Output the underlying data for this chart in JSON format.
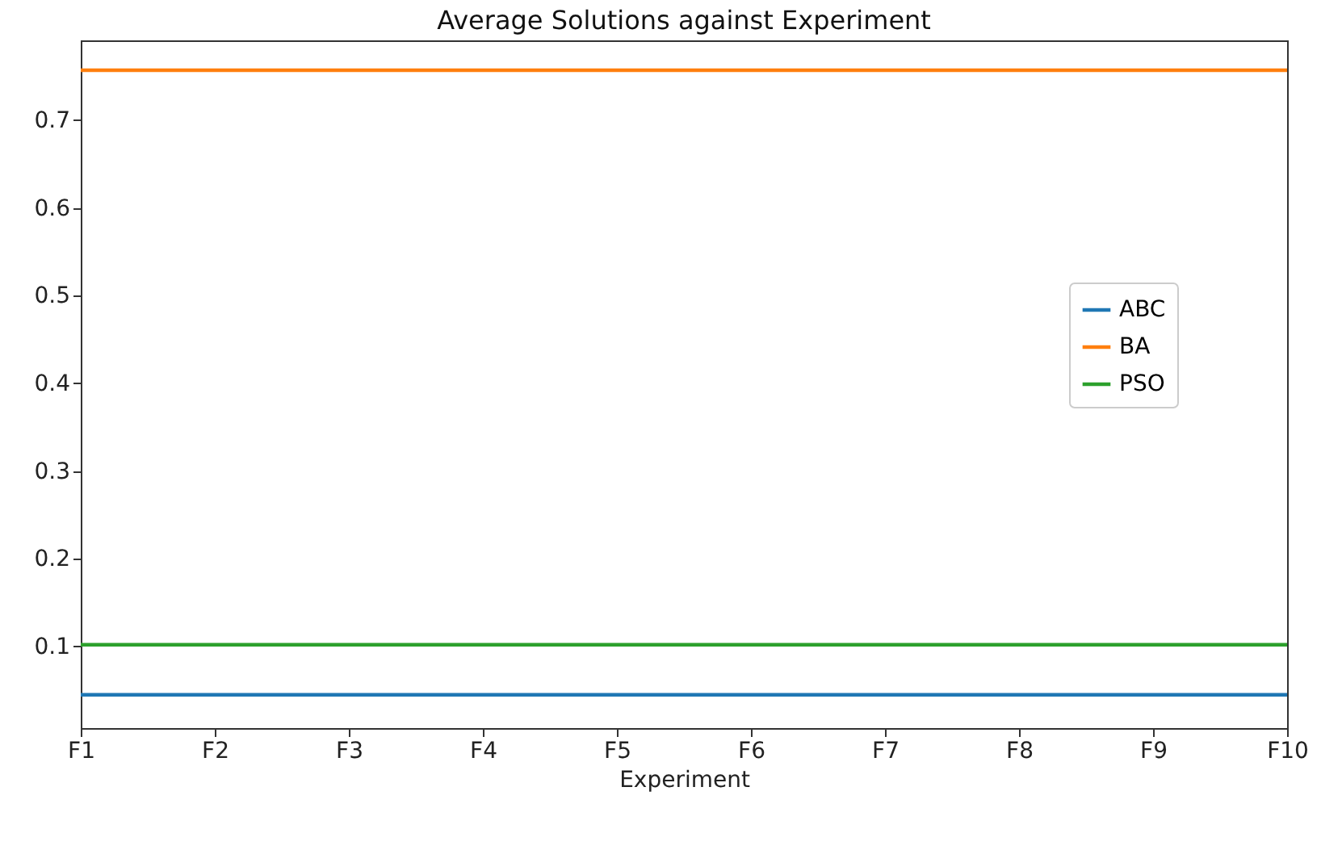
{
  "chart_data": {
    "type": "line",
    "title": "Average Solutions against Experiment",
    "xlabel": "Experiment",
    "categories": [
      "F1",
      "F2",
      "F3",
      "F4",
      "F5",
      "F6",
      "F7",
      "F8",
      "F9",
      "F10"
    ],
    "series": [
      {
        "name": "ABC",
        "color": "#1f77b4",
        "values": [
          0.045,
          0.045,
          0.045,
          0.045,
          0.045,
          0.045,
          0.045,
          0.045,
          0.045,
          0.045
        ]
      },
      {
        "name": "BA",
        "color": "#ff7f0e",
        "values": [
          0.757,
          0.757,
          0.757,
          0.757,
          0.757,
          0.757,
          0.757,
          0.757,
          0.757,
          0.757
        ]
      },
      {
        "name": "PSO",
        "color": "#2ca02c",
        "values": [
          0.102,
          0.102,
          0.102,
          0.102,
          0.102,
          0.102,
          0.102,
          0.102,
          0.102,
          0.102
        ]
      }
    ],
    "ylim": [
      0.007,
      0.791
    ],
    "yticks": [
      0.1,
      0.2,
      0.3,
      0.4,
      0.5,
      0.6,
      0.7
    ],
    "grid": false,
    "legend": "right",
    "marker": "none",
    "line_style": "solid"
  }
}
